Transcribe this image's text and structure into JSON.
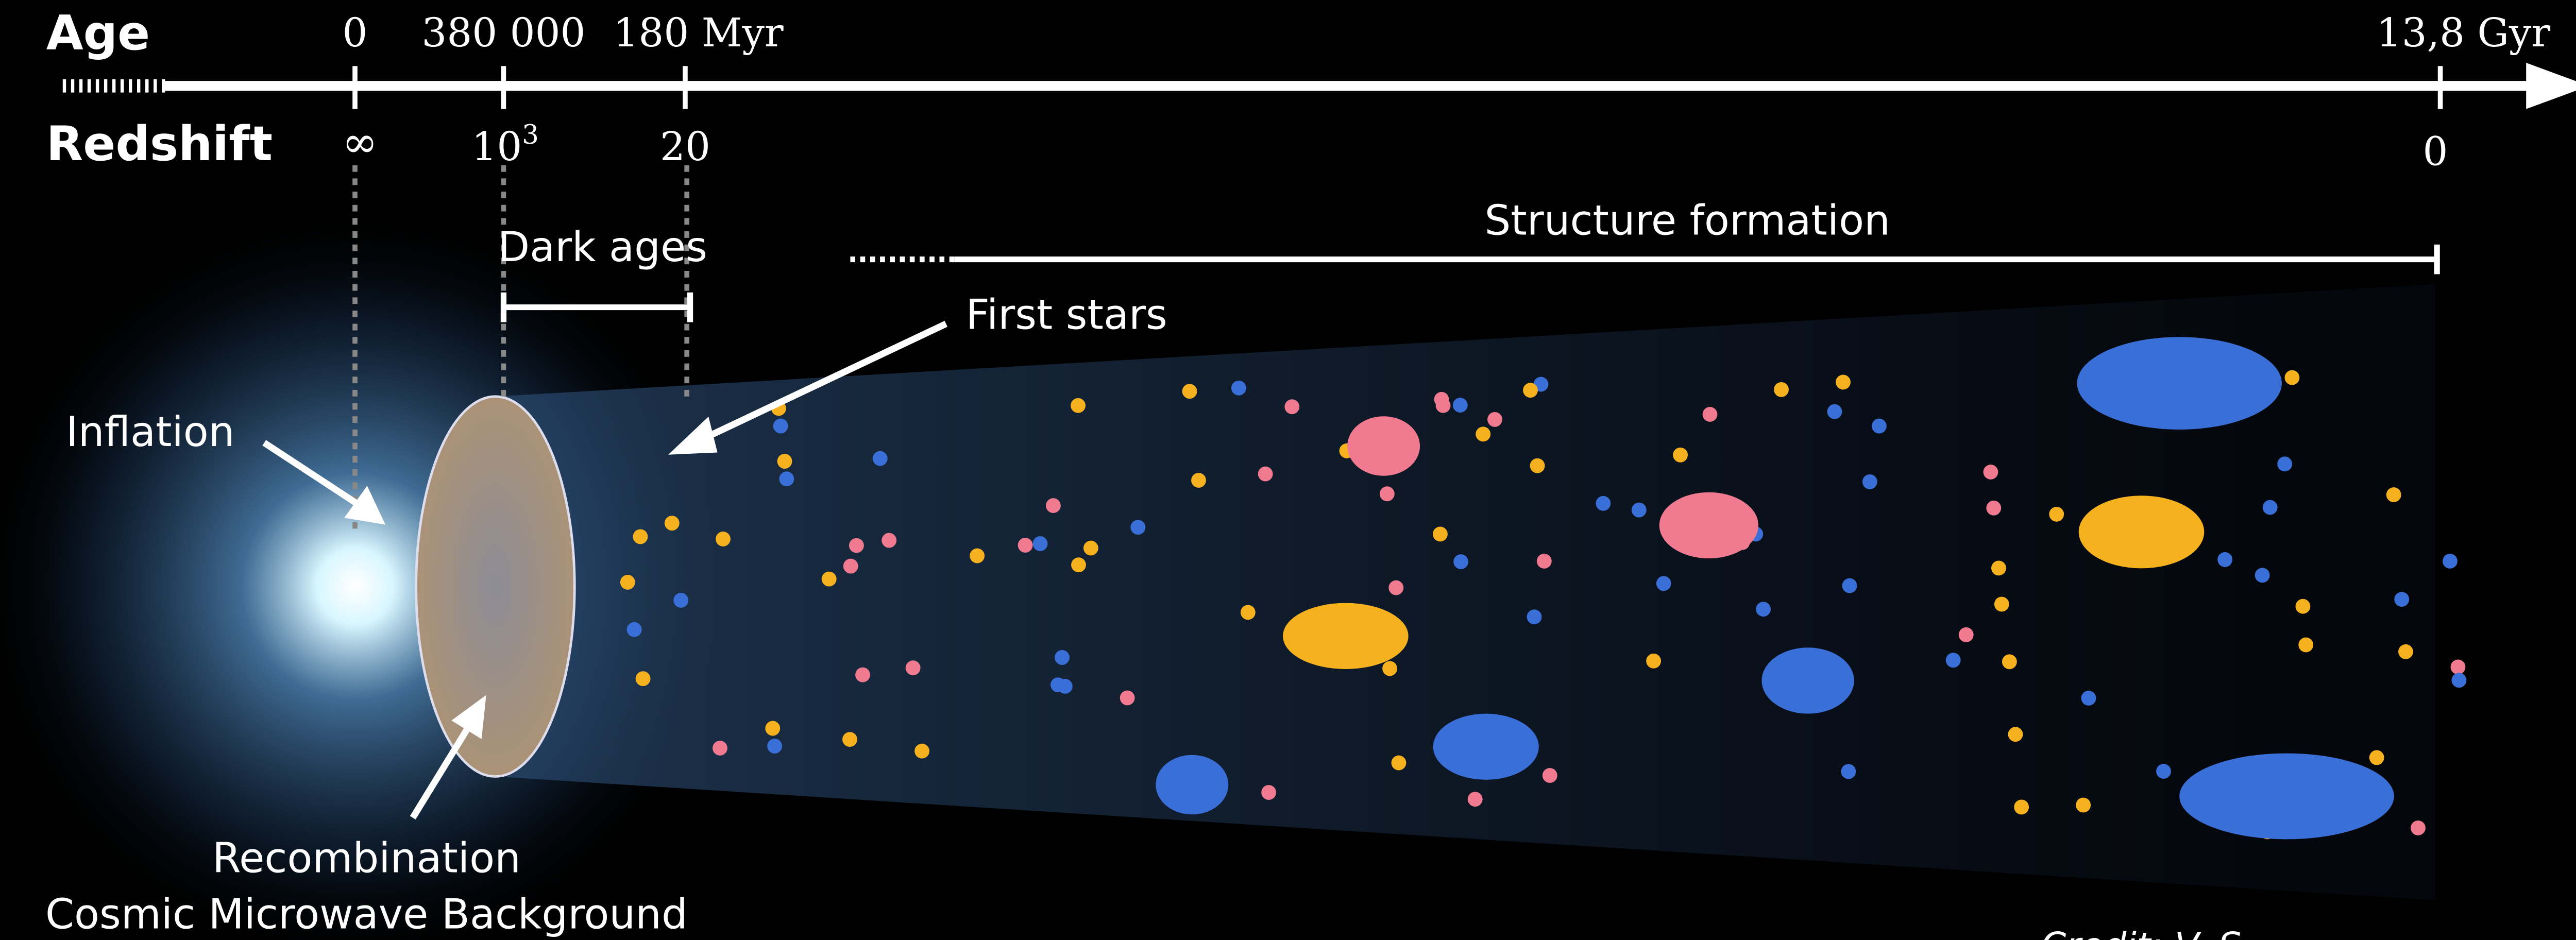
{
  "timeline": {
    "age_label": "Age",
    "age_ticks": [
      "0",
      "380 000",
      "180 Myr",
      "13,8 Gyr"
    ],
    "redshift_label": "Redshift",
    "redshift_ticks": [
      {
        "text": "∞"
      },
      {
        "text": "10",
        "superscript": "3"
      },
      {
        "text": "20"
      },
      {
        "text": "0"
      }
    ]
  },
  "annotations": {
    "dark_ages": "Dark ages",
    "structure_formation": "Structure formation",
    "first_stars": "First stars",
    "inflation": "Inflation",
    "recombination": "Recombination",
    "cmb": "Cosmic Microwave Background",
    "credit": "Credit: V. S"
  }
}
